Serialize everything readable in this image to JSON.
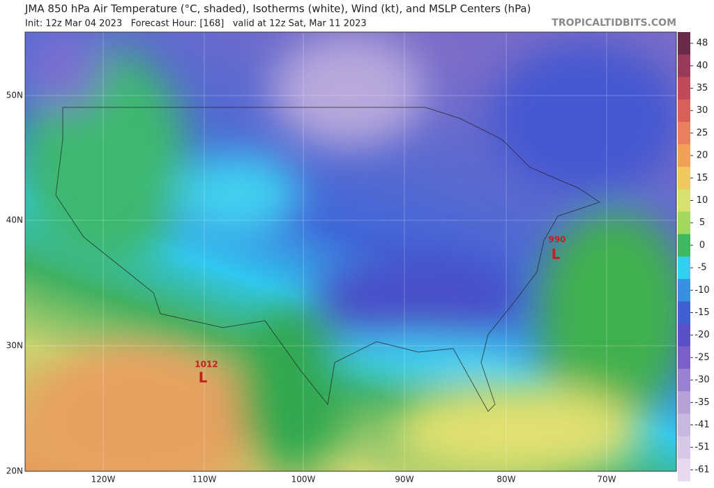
{
  "header": {
    "title": "JMA 850 hPa Air Temperature (°C, shaded), Isotherms (white), Wind (kt), and MSLP Centers (hPa)",
    "subtitle": "Init: 12z Mar 04 2023   Forecast Hour: [168]   valid at 12z Sat, Mar 11 2023",
    "watermark": "TROPICALTIDBITS.COM"
  },
  "map": {
    "lat_labels": [
      "50N",
      "40N",
      "30N",
      "20N"
    ],
    "lon_labels": [
      "120W",
      "110W",
      "100W",
      "90W",
      "80W",
      "70W"
    ],
    "pressure_centers": [
      {
        "value": "1012",
        "symbol": "L"
      },
      {
        "value": "990",
        "symbol": "L"
      }
    ]
  },
  "colorbar": {
    "ticks": [
      48,
      40,
      35,
      30,
      25,
      20,
      15,
      10,
      5,
      0,
      -5,
      -10,
      -15,
      -20,
      -25,
      -30,
      -35,
      -41,
      -51,
      -61
    ],
    "colors": [
      "#6a2a4a",
      "#9a3a5a",
      "#c04a5a",
      "#d8605a",
      "#e88060",
      "#f0a058",
      "#f0c860",
      "#d8e070",
      "#a0d860",
      "#40b860",
      "#30d0f0",
      "#3a90e0",
      "#4060d0",
      "#5a50c8",
      "#7a60c8",
      "#9a80d0",
      "#b8a0d8",
      "#c8b8e0",
      "#d8c8e8",
      "#e8d8f0"
    ]
  }
}
